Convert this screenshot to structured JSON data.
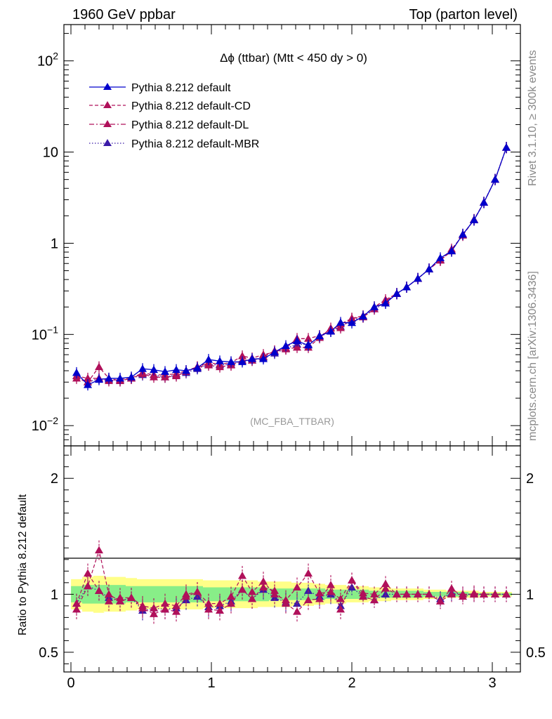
{
  "header": {
    "left_label": "1960 GeV ppbar",
    "right_label": "Top (parton level)"
  },
  "side_labels": {
    "rivet": "Rivet 3.1.10, ≥ 300k events",
    "mcplots": "mcplots.cern.ch [arXiv:1306.3436]"
  },
  "plot_title": "Δϕ (ttbar) (Mtt < 450 dy > 0)",
  "analysis_tag": "(MC_FBA_TTBAR)",
  "colors": {
    "default": "#0000cc",
    "cd": "#b0105a",
    "dl": "#b0105a",
    "mbr": "#3a1aa8",
    "band_outer": "#ffff88",
    "band_inner": "#88ee88"
  },
  "chart_data": [
    {
      "type": "line",
      "yscale": "log",
      "xlim": [
        -0.05,
        3.2
      ],
      "ylim": [
        0.006,
        250
      ],
      "yticks": [
        0.01,
        0.1,
        1,
        10,
        100
      ],
      "ytick_labels": [
        {
          "base": "10",
          "exp": "−2"
        },
        {
          "base": "10",
          "exp": "−1"
        },
        {
          "base": "1",
          "exp": ""
        },
        {
          "base": "10",
          "exp": ""
        },
        {
          "base": "10",
          "exp": "2"
        }
      ],
      "x": [
        0.04,
        0.12,
        0.2,
        0.27,
        0.35,
        0.43,
        0.51,
        0.59,
        0.67,
        0.75,
        0.82,
        0.9,
        0.98,
        1.06,
        1.14,
        1.22,
        1.29,
        1.37,
        1.45,
        1.53,
        1.61,
        1.69,
        1.77,
        1.85,
        1.92,
        2.0,
        2.08,
        2.16,
        2.24,
        2.32,
        2.39,
        2.47,
        2.55,
        2.63,
        2.71,
        2.79,
        2.87,
        2.94,
        3.02,
        3.1
      ],
      "series": [
        {
          "name": "Pythia 8.212 default",
          "key": "default",
          "marker": "triangle",
          "line": "solid",
          "values": [
            0.038,
            0.028,
            0.032,
            0.033,
            0.033,
            0.034,
            0.042,
            0.041,
            0.039,
            0.041,
            0.04,
            0.043,
            0.053,
            0.051,
            0.05,
            0.05,
            0.054,
            0.054,
            0.064,
            0.075,
            0.085,
            0.076,
            0.096,
            0.108,
            0.135,
            0.134,
            0.158,
            0.2,
            0.22,
            0.28,
            0.33,
            0.41,
            0.52,
            0.69,
            0.82,
            1.25,
            1.8,
            2.8,
            5.0,
            11.2
          ]
        },
        {
          "name": "Pythia 8.212 default-CD",
          "key": "cd",
          "marker": "triangle",
          "line": "dashed",
          "values": [
            0.035,
            0.033,
            0.033,
            0.031,
            0.032,
            0.033,
            0.038,
            0.036,
            0.036,
            0.037,
            0.04,
            0.044,
            0.049,
            0.047,
            0.049,
            0.058,
            0.055,
            0.06,
            0.064,
            0.071,
            0.09,
            0.09,
            0.097,
            0.11,
            0.13,
            0.15,
            0.16,
            0.2,
            0.24,
            0.28,
            0.33,
            0.41,
            0.52,
            0.65,
            0.86,
            1.22,
            1.82,
            2.8,
            5.0,
            11.2
          ]
        },
        {
          "name": "Pythia 8.212 default-DL",
          "key": "dl",
          "marker": "triangle",
          "line": "dashed",
          "values": [
            0.033,
            0.03,
            0.044,
            0.033,
            0.031,
            0.033,
            0.037,
            0.034,
            0.034,
            0.035,
            0.039,
            0.044,
            0.046,
            0.044,
            0.046,
            0.052,
            0.052,
            0.057,
            0.066,
            0.069,
            0.072,
            0.072,
            0.092,
            0.117,
            0.118,
            0.15,
            0.155,
            0.19,
            0.23,
            0.28,
            0.33,
            0.41,
            0.52,
            0.65,
            0.82,
            1.25,
            1.8,
            2.8,
            5.0,
            11.2
          ]
        },
        {
          "name": "Pythia 8.212 default-MBR",
          "key": "mbr",
          "marker": "triangle",
          "line": "dotted",
          "values": [
            0.035,
            0.03,
            0.033,
            0.032,
            0.031,
            0.033,
            0.036,
            0.036,
            0.034,
            0.036,
            0.038,
            0.042,
            0.047,
            0.046,
            0.047,
            0.052,
            0.052,
            0.056,
            0.062,
            0.07,
            0.078,
            0.078,
            0.094,
            0.108,
            0.122,
            0.142,
            0.155,
            0.19,
            0.22,
            0.28,
            0.33,
            0.41,
            0.52,
            0.66,
            0.83,
            1.25,
            1.8,
            2.8,
            5.0,
            11.2
          ]
        }
      ],
      "legend_position": "top-left"
    },
    {
      "type": "line",
      "ylabel": "Ratio to Pythia 8.212 default",
      "xlim": [
        -0.05,
        3.2
      ],
      "ylim": [
        0.33,
        2.28
      ],
      "xticks": [
        0,
        1,
        2,
        3
      ],
      "yticks": [
        0.5,
        1,
        2
      ],
      "ytick_labels": [
        "0.5",
        "1",
        "2"
      ],
      "x": [
        0.04,
        0.12,
        0.2,
        0.27,
        0.35,
        0.43,
        0.51,
        0.59,
        0.67,
        0.75,
        0.82,
        0.9,
        0.98,
        1.06,
        1.14,
        1.22,
        1.29,
        1.37,
        1.45,
        1.53,
        1.61,
        1.69,
        1.77,
        1.85,
        1.92,
        2.0,
        2.08,
        2.16,
        2.24,
        2.32,
        2.39,
        2.47,
        2.55,
        2.63,
        2.71,
        2.79,
        2.87,
        2.94,
        3.02,
        3.1
      ],
      "band_outer_halfwidth": [
        0.13,
        0.15,
        0.16,
        0.15,
        0.15,
        0.14,
        0.13,
        0.13,
        0.13,
        0.13,
        0.13,
        0.13,
        0.12,
        0.12,
        0.12,
        0.12,
        0.12,
        0.11,
        0.11,
        0.11,
        0.1,
        0.1,
        0.09,
        0.08,
        0.08,
        0.07,
        0.07,
        0.06,
        0.06,
        0.05,
        0.05,
        0.05,
        0.04,
        0.04,
        0.03,
        0.03,
        0.03,
        0.02,
        0.02,
        0.02
      ],
      "band_inner_halfwidth": [
        0.07,
        0.08,
        0.08,
        0.08,
        0.08,
        0.07,
        0.07,
        0.07,
        0.07,
        0.07,
        0.07,
        0.07,
        0.06,
        0.06,
        0.06,
        0.06,
        0.06,
        0.06,
        0.05,
        0.05,
        0.05,
        0.05,
        0.05,
        0.04,
        0.04,
        0.04,
        0.04,
        0.03,
        0.03,
        0.03,
        0.03,
        0.03,
        0.02,
        0.02,
        0.02,
        0.02,
        0.01,
        0.01,
        0.01,
        0.01
      ],
      "series": [
        {
          "name": "Pythia 8.212 default-CD",
          "key": "cd",
          "line": "dashed",
          "values": [
            0.92,
            1.18,
            1.03,
            0.94,
            0.97,
            0.97,
            0.9,
            0.88,
            0.92,
            0.9,
            1.0,
            1.02,
            0.92,
            0.92,
            0.98,
            1.16,
            1.02,
            1.11,
            1.0,
            0.95,
            1.06,
            1.18,
            1.01,
            1.02,
            0.96,
            1.12,
            1.01,
            1.0,
            1.09,
            1.0,
            1.0,
            1.0,
            1.0,
            0.94,
            1.05,
            0.98,
            1.01,
            1.0,
            1.0,
            1.0
          ]
        },
        {
          "name": "Pythia 8.212 default-DL",
          "key": "dl",
          "line": "dashed",
          "values": [
            0.87,
            1.07,
            1.38,
            1.0,
            0.94,
            0.97,
            0.88,
            0.83,
            0.87,
            0.85,
            0.98,
            1.02,
            0.87,
            0.86,
            0.92,
            1.04,
            0.96,
            1.06,
            1.03,
            0.92,
            0.85,
            0.95,
            0.96,
            1.08,
            0.87,
            1.12,
            0.98,
            0.95,
            1.05,
            1.0,
            1.0,
            1.0,
            1.0,
            0.94,
            1.0,
            1.0,
            1.0,
            1.0,
            1.0,
            1.0
          ]
        },
        {
          "name": "Pythia 8.212 default-MBR",
          "key": "mbr",
          "line": "dotted",
          "values": [
            0.92,
            1.07,
            1.03,
            0.97,
            0.94,
            0.97,
            0.86,
            0.88,
            0.87,
            0.88,
            0.95,
            0.98,
            0.89,
            0.9,
            0.94,
            1.04,
            0.96,
            1.04,
            0.97,
            0.93,
            0.92,
            1.03,
            0.98,
            1.0,
            0.9,
            1.06,
            0.98,
            0.95,
            1.0,
            1.0,
            1.0,
            1.0,
            1.0,
            0.96,
            1.01,
            1.0,
            1.0,
            1.0,
            1.0,
            1.0
          ]
        }
      ]
    }
  ]
}
